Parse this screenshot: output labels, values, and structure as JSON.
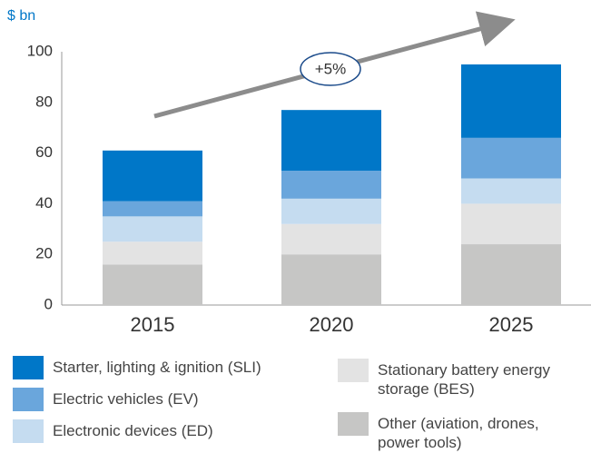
{
  "chart_data": {
    "type": "stacked-bar",
    "unit_label": "$ bn",
    "annotation": "+5%",
    "categories": [
      "2015",
      "2020",
      "2025"
    ],
    "series": [
      {
        "name": "Starter, lighting & ignition (SLI)",
        "color": "#0077c8",
        "values": [
          20,
          24,
          29
        ]
      },
      {
        "name": "Electric vehicles (EV)",
        "color": "#6aa6dc",
        "values": [
          6,
          11,
          16
        ]
      },
      {
        "name": "Electronic devices (ED)",
        "color": "#c5dcf0",
        "values": [
          10,
          10,
          10
        ]
      },
      {
        "name": "Stationary battery energy  storage (BES)",
        "color": "#e3e3e3",
        "values": [
          9,
          12,
          16
        ]
      },
      {
        "name": "Other (aviation, drones, power tools)",
        "color": "#c6c6c5",
        "values": [
          16,
          20,
          24
        ]
      }
    ],
    "ylim": [
      0,
      100
    ],
    "yticks": [
      0,
      20,
      40,
      60,
      80,
      100
    ],
    "grid": false
  }
}
